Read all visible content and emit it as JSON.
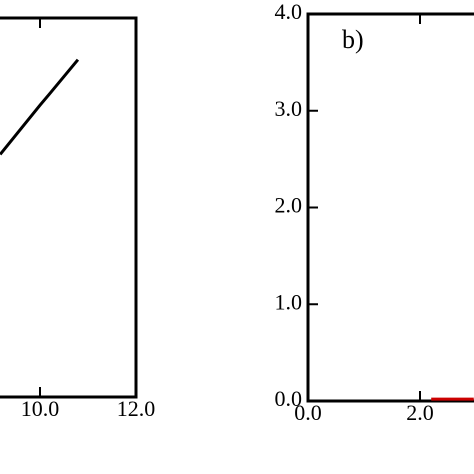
{
  "chart_data": [
    {
      "type": "line",
      "xlim": [
        6,
        12
      ],
      "ylim": [
        0,
        1
      ],
      "xticks": [
        {
          "value": 10,
          "label": "10.0"
        },
        {
          "value": 12,
          "label": "12.0"
        }
      ],
      "series": [
        {
          "color": "#000000",
          "x": [
            9.17,
            10.0,
            10.2,
            10.79
          ],
          "values": [
            0.64,
            0.77,
            0.8,
            0.89
          ]
        }
      ]
    },
    {
      "type": "line",
      "annotation": "b)",
      "xlim": [
        0,
        4
      ],
      "ylim": [
        0,
        4
      ],
      "xticks": [
        {
          "value": 0,
          "label": "0.0"
        },
        {
          "value": 2,
          "label": "2.0"
        }
      ],
      "yticks": [
        {
          "value": 0,
          "label": "0.0"
        },
        {
          "value": 1,
          "label": "1.0"
        },
        {
          "value": 2,
          "label": "2.0"
        },
        {
          "value": 3,
          "label": "3.0"
        },
        {
          "value": 4,
          "label": "4.0"
        }
      ],
      "series": [
        {
          "color": "#cc0000",
          "x": [
            2.2,
            2.96
          ],
          "values": [
            0.02,
            0.02
          ]
        }
      ]
    }
  ]
}
